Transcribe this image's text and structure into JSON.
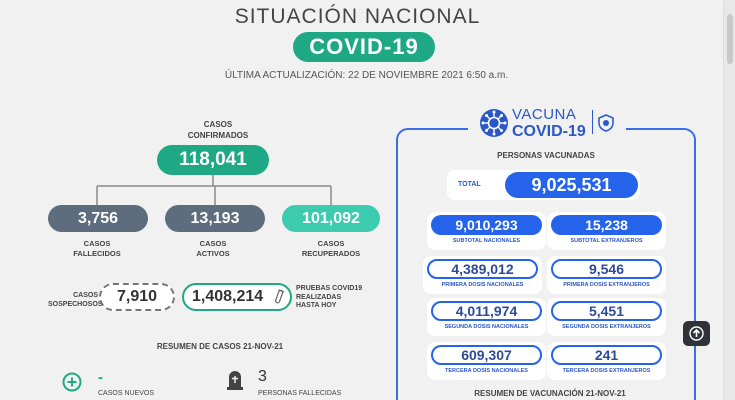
{
  "header": {
    "title": "SITUACIÓN NACIONAL",
    "badge": "COVID-19",
    "updated": "ÚLTIMA ACTUALIZACIÓN: 22 DE NOVIEMBRE 2021 6:50 a.m."
  },
  "cases": {
    "confirmed_label_1": "CASOS",
    "confirmed_label_2": "CONFIRMADOS",
    "confirmed": "118,041",
    "deceased": "3,756",
    "deceased_label_1": "CASOS",
    "deceased_label_2": "FALLECIDOS",
    "active": "13,193",
    "active_label_1": "CASOS",
    "active_label_2": "ACTIVOS",
    "recovered": "101,092",
    "recovered_label_1": "CASOS",
    "recovered_label_2": "RECUPERADOS",
    "suspected_label_1": "CASOS",
    "suspected_label_2": "SOSPECHOSOS",
    "suspected": "7,910",
    "tests": "1,408,214",
    "tests_label_1": "PRUEBAS COVID19",
    "tests_label_2": "REALIZADAS",
    "tests_label_3": "HASTA HOY"
  },
  "daily_summary": {
    "title": "RESUMEN DE CASOS 21-NOV-21",
    "new_cases_value": "-",
    "new_cases_label": "CASOS NUEVOS",
    "deaths_value": "3",
    "deaths_label": "PERSONAS FALLECIDAS"
  },
  "vaccine": {
    "logo_line1": "VACUNA",
    "logo_line2": "COVID-19",
    "people_label": "PERSONAS VACUNADAS",
    "total_label": "TOTAL",
    "total": "9,025,531",
    "cards": [
      {
        "value": "9,010,293",
        "label": "SUBTOTAL NACIONALES"
      },
      {
        "value": "15,238",
        "label": "SUBTOTAL EXTRANJEROS"
      },
      {
        "value": "4,389,012",
        "label": "PRIMERA DOSIS NACIONALES"
      },
      {
        "value": "9,546",
        "label": "PRIMERA DOSIS EXTRANJEROS"
      },
      {
        "value": "4,011,974",
        "label": "SEGUNDA DOSIS NACIONALES"
      },
      {
        "value": "5,451",
        "label": "SEGUNDA DOSIS EXTRANJEROS"
      },
      {
        "value": "609,307",
        "label": "TERCERA DOSIS NACIONALES"
      },
      {
        "value": "241",
        "label": "TERCERA DOSIS EXTRANJEROS"
      }
    ],
    "summary_title": "RESUMEN DE VACUNACIÓN 21-NOV-21"
  },
  "colors": {
    "green": "#1fa884",
    "teal": "#3dcbb0",
    "slate": "#5d6d7e",
    "blue": "#2563eb"
  },
  "icons": {
    "new_cases": "plus-circle-icon",
    "deaths": "tombstone-icon",
    "tests": "test-tube-icon",
    "scroll_top": "arrow-up-icon",
    "vaccine": "virus-icon",
    "seal": "shield-icon"
  }
}
